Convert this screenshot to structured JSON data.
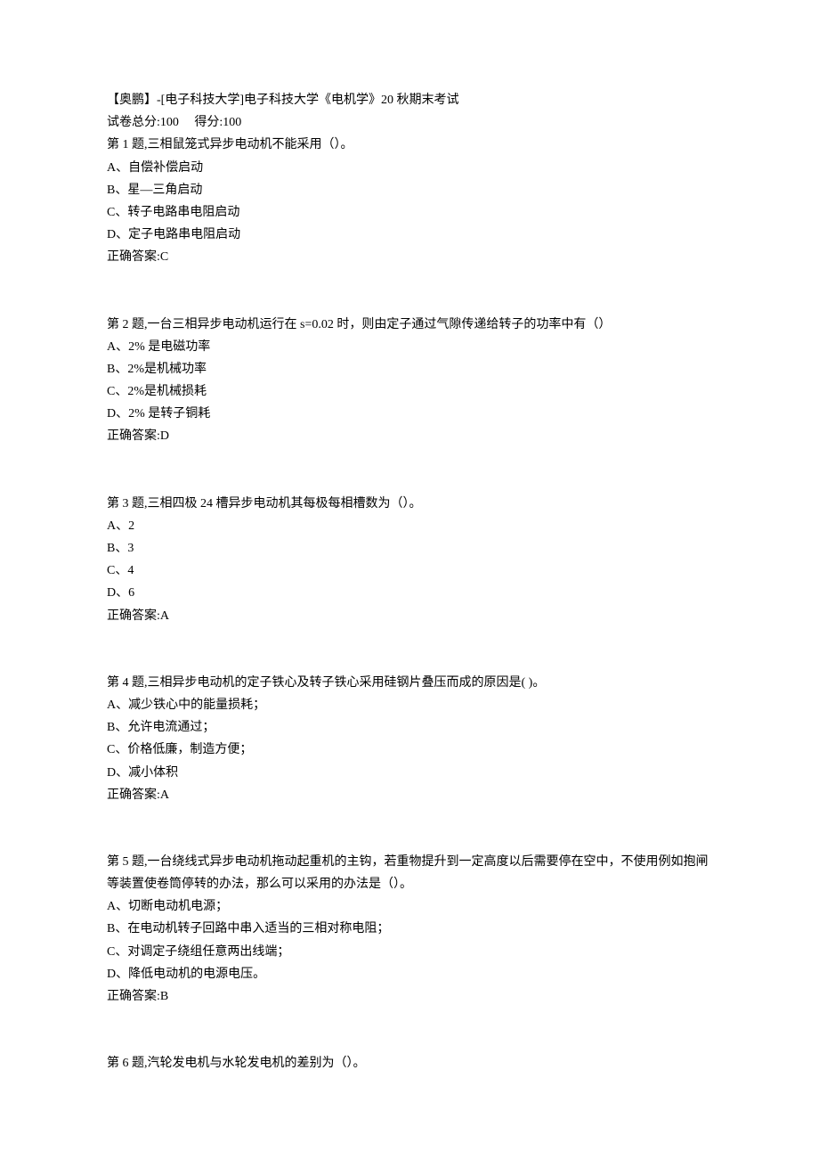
{
  "header": {
    "title": "【奥鹏】-[电子科技大学]电子科技大学《电机学》20 秋期末考试",
    "total_label": "试卷总分:",
    "total_value": "100",
    "score_label": "得分:",
    "score_value": "100"
  },
  "questions": [
    {
      "stem": "第 1 题,三相鼠笼式异步电动机不能采用（）。",
      "options": [
        "A、自偿补偿启动",
        "B、星—三角启动",
        "C、转子电路串电阻启动",
        "D、定子电路串电阻启动"
      ],
      "answer": "正确答案:C"
    },
    {
      "stem": "第 2 题,一台三相异步电动机运行在 s=0.02 时，则由定子通过气隙传递给转子的功率中有（）",
      "options": [
        "A、2% 是电磁功率",
        "B、2%是机械功率",
        "C、2%是机械损耗",
        "D、2% 是转子铜耗"
      ],
      "answer": "正确答案:D"
    },
    {
      "stem": "第 3 题,三相四极 24 槽异步电动机其每极每相槽数为（）。",
      "options": [
        "A、2",
        "B、3",
        "C、4",
        "D、6"
      ],
      "answer": "正确答案:A"
    },
    {
      "stem": "第 4 题,三相异步电动机的定子铁心及转子铁心采用硅钢片叠压而成的原因是( )。",
      "options": [
        "A、减少铁心中的能量损耗；",
        "B、允许电流通过；",
        "C、价格低廉，制造方便；",
        "D、减小体积"
      ],
      "answer": "正确答案:A"
    },
    {
      "stem": "第 5 题,一台绕线式异步电动机拖动起重机的主钩，若重物提升到一定高度以后需要停在空中，不使用例如抱闸等装置使卷筒停转的办法，那么可以采用的办法是（）。",
      "options": [
        "A、切断电动机电源；",
        "B、在电动机转子回路中串入适当的三相对称电阻；",
        "C、对调定子绕组任意两出线端；",
        "D、降低电动机的电源电压。"
      ],
      "answer": "正确答案:B"
    },
    {
      "stem": "第 6 题,汽轮发电机与水轮发电机的差别为（）。",
      "options": [],
      "answer": ""
    }
  ]
}
